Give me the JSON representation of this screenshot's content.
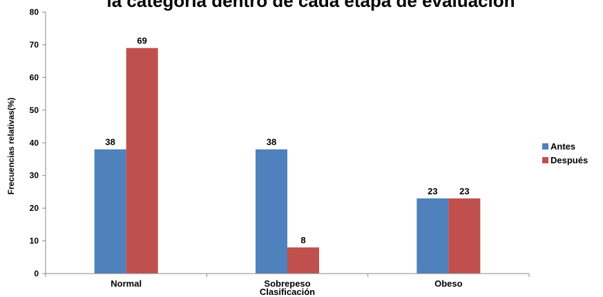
{
  "chart_data": {
    "type": "bar",
    "title": "la categoría dentro de cada etapa de evaluación",
    "xlabel": "Clasificación",
    "ylabel": "Frecuencias relativas(%)",
    "categories": [
      "Normal",
      "Sobrepeso",
      "Obeso"
    ],
    "series": [
      {
        "name": "Antes",
        "color": "#4F81BD",
        "values": [
          38,
          38,
          23
        ]
      },
      {
        "name": "Después",
        "color": "#C0504D",
        "values": [
          69,
          8,
          23
        ]
      }
    ],
    "data_labels": [
      [
        "38",
        "38",
        "23"
      ],
      [
        "69",
        "8",
        "23"
      ]
    ],
    "ylim": [
      0,
      80
    ],
    "yticks": [
      0,
      10,
      20,
      30,
      40,
      50,
      60,
      70,
      80
    ],
    "ytick_labels": [
      "0",
      "10",
      "20",
      "30",
      "40",
      "50",
      "60",
      "70",
      "80"
    ],
    "grid": false,
    "legend_position": "right"
  }
}
